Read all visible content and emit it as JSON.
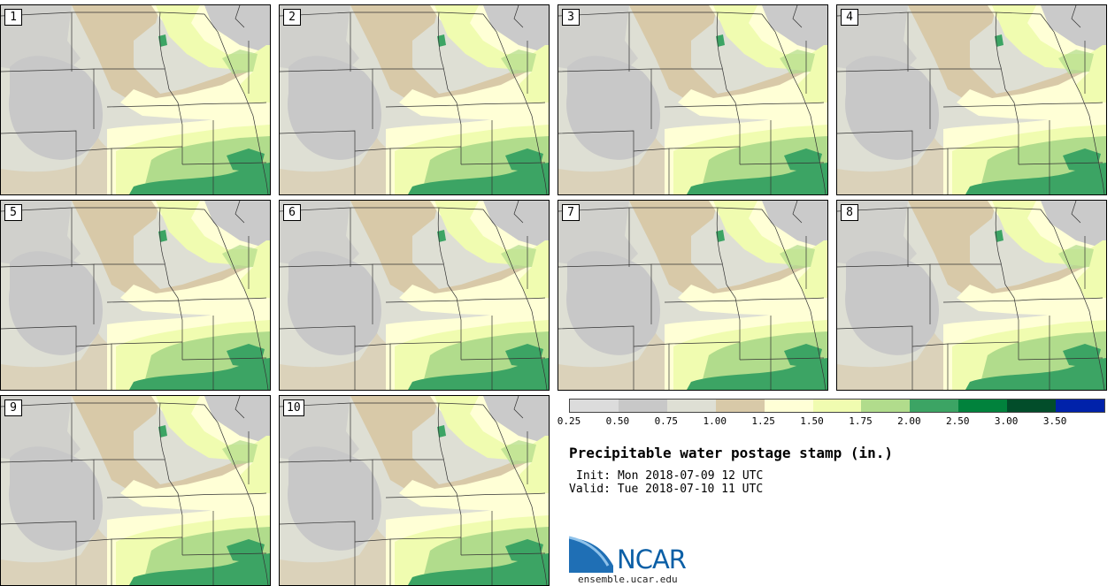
{
  "panels": [
    {
      "label": "1"
    },
    {
      "label": "2"
    },
    {
      "label": "3"
    },
    {
      "label": "4"
    },
    {
      "label": "5"
    },
    {
      "label": "6"
    },
    {
      "label": "7"
    },
    {
      "label": "8"
    },
    {
      "label": "9"
    },
    {
      "label": "10"
    }
  ],
  "legend": {
    "ticks": [
      "0.25",
      "0.50",
      "0.75",
      "1.00",
      "1.25",
      "1.50",
      "1.75",
      "2.00",
      "2.50",
      "3.00",
      "3.50"
    ],
    "colors": [
      "#dcdcdc",
      "#c8c8c8",
      "#dedfd4",
      "#d8c9a8",
      "#ffffd6",
      "#f0fcb0",
      "#b1dc8c",
      "#3ca464",
      "#01823c",
      "#024d2a",
      "#0022aa"
    ]
  },
  "title": "Precipitable water postage stamp (in.)",
  "init": "Init: Mon 2018-07-09 12 UTC",
  "valid": "Valid: Tue 2018-07-10 11 UTC",
  "logo": {
    "name": "NCAR",
    "url": "ensemble.ucar.edu"
  }
}
